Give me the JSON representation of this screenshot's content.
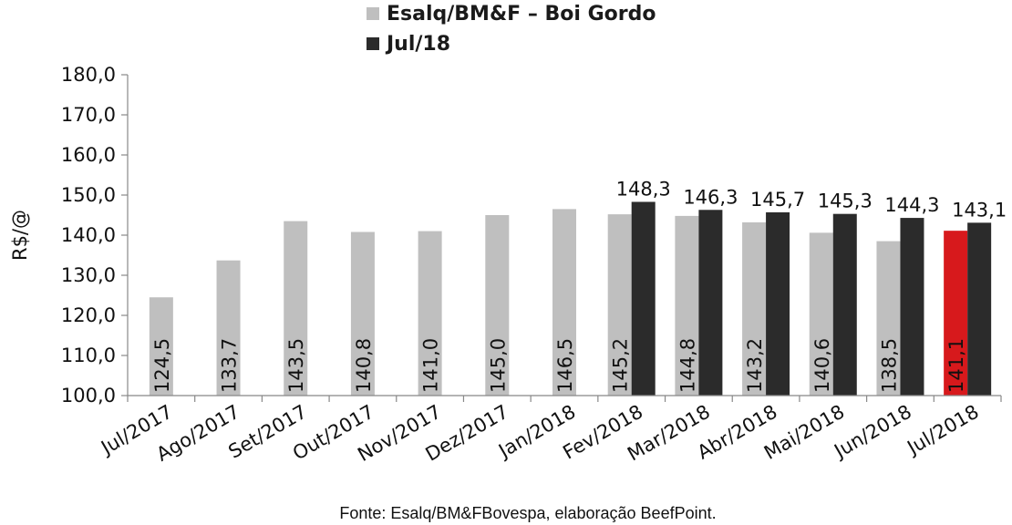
{
  "chart_data": {
    "type": "bar",
    "ylabel": "R$/@",
    "ylim": [
      100,
      180
    ],
    "yticks": [
      "100,0",
      "110,0",
      "120,0",
      "130,0",
      "140,0",
      "150,0",
      "160,0",
      "170,0",
      "180,0"
    ],
    "categories": [
      "Jul/2017",
      "Ago/2017",
      "Set/2017",
      "Out/2017",
      "Nov/2017",
      "Dez/2017",
      "Jan/2018",
      "Fev/2018",
      "Mar/2018",
      "Abr/2018",
      "Mai/2018",
      "Jun/2018",
      "Jul/2018"
    ],
    "legend_position": "top",
    "grid": false,
    "series": [
      {
        "name": "Esalq/BM&F – Boi Gordo",
        "color": "#bfbfbf",
        "highlight": {
          "index": 12,
          "color": "#d7191c"
        },
        "values": [
          124.5,
          133.7,
          143.5,
          140.8,
          141.0,
          145.0,
          146.5,
          145.2,
          144.8,
          143.2,
          140.6,
          138.5,
          141.1
        ],
        "labels": [
          "124,5",
          "133,7",
          "143,5",
          "140,8",
          "141,0",
          "145,0",
          "146,5",
          "145,2",
          "144,8",
          "143,2",
          "140,6",
          "138,5",
          "141,1"
        ]
      },
      {
        "name": "Jul/18",
        "color": "#2b2b2b",
        "values": [
          null,
          null,
          null,
          null,
          null,
          null,
          null,
          148.3,
          146.3,
          145.7,
          145.3,
          144.3,
          143.1
        ],
        "labels": [
          null,
          null,
          null,
          null,
          null,
          null,
          null,
          "148,3",
          "146,3",
          "145,7",
          "145,3",
          "144,3",
          "143,1"
        ]
      }
    ]
  },
  "source": "Fonte: Esalq/BM&FBovespa, elaboração BeefPoint."
}
